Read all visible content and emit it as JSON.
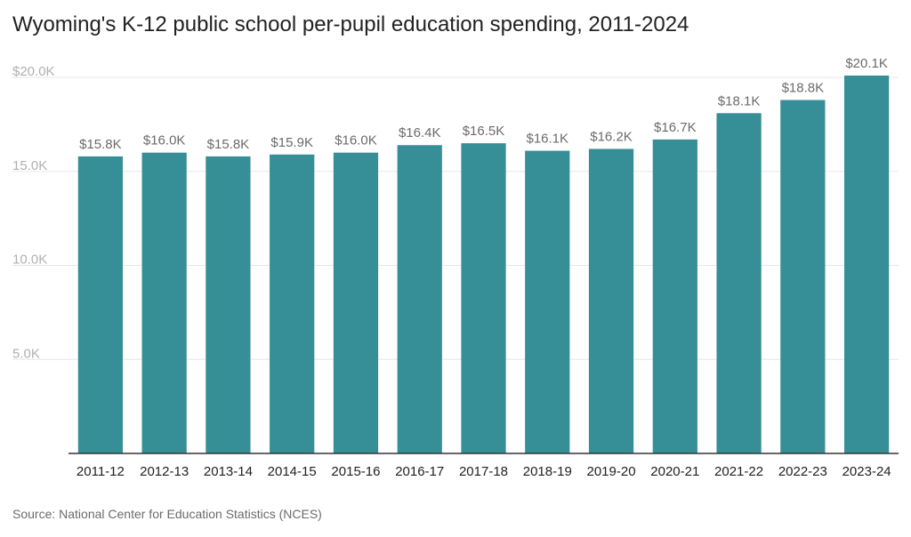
{
  "title": "Wyoming's K-12 public school per-pupil education spending, 2011-2024",
  "source": "Source: National Center for Education Statistics (NCES)",
  "colors": {
    "bar": "#368f97",
    "grid": "#e6e6e6",
    "axis": "#333333"
  },
  "chart_data": {
    "type": "bar",
    "categories": [
      "2011-12",
      "2012-13",
      "2013-14",
      "2014-15",
      "2015-16",
      "2016-17",
      "2017-18",
      "2018-19",
      "2019-20",
      "2020-21",
      "2021-22",
      "2022-23",
      "2023-24"
    ],
    "values": [
      15800,
      16000,
      15800,
      15900,
      16000,
      16400,
      16500,
      16100,
      16200,
      16700,
      18100,
      18800,
      20100
    ],
    "data_labels": [
      "$15.8K",
      "$16.0K",
      "$15.8K",
      "$15.9K",
      "$16.0K",
      "$16.4K",
      "$16.5K",
      "$16.1K",
      "$16.2K",
      "$16.7K",
      "$18.1K",
      "$18.8K",
      "$20.1K"
    ],
    "yticks": [
      5000,
      10000,
      15000,
      20000
    ],
    "ytick_labels": [
      "5.0K",
      "10.0K",
      "15.0K",
      "$20.0K"
    ],
    "ylim": [
      0,
      20100
    ],
    "grid": true,
    "legend": "none"
  }
}
